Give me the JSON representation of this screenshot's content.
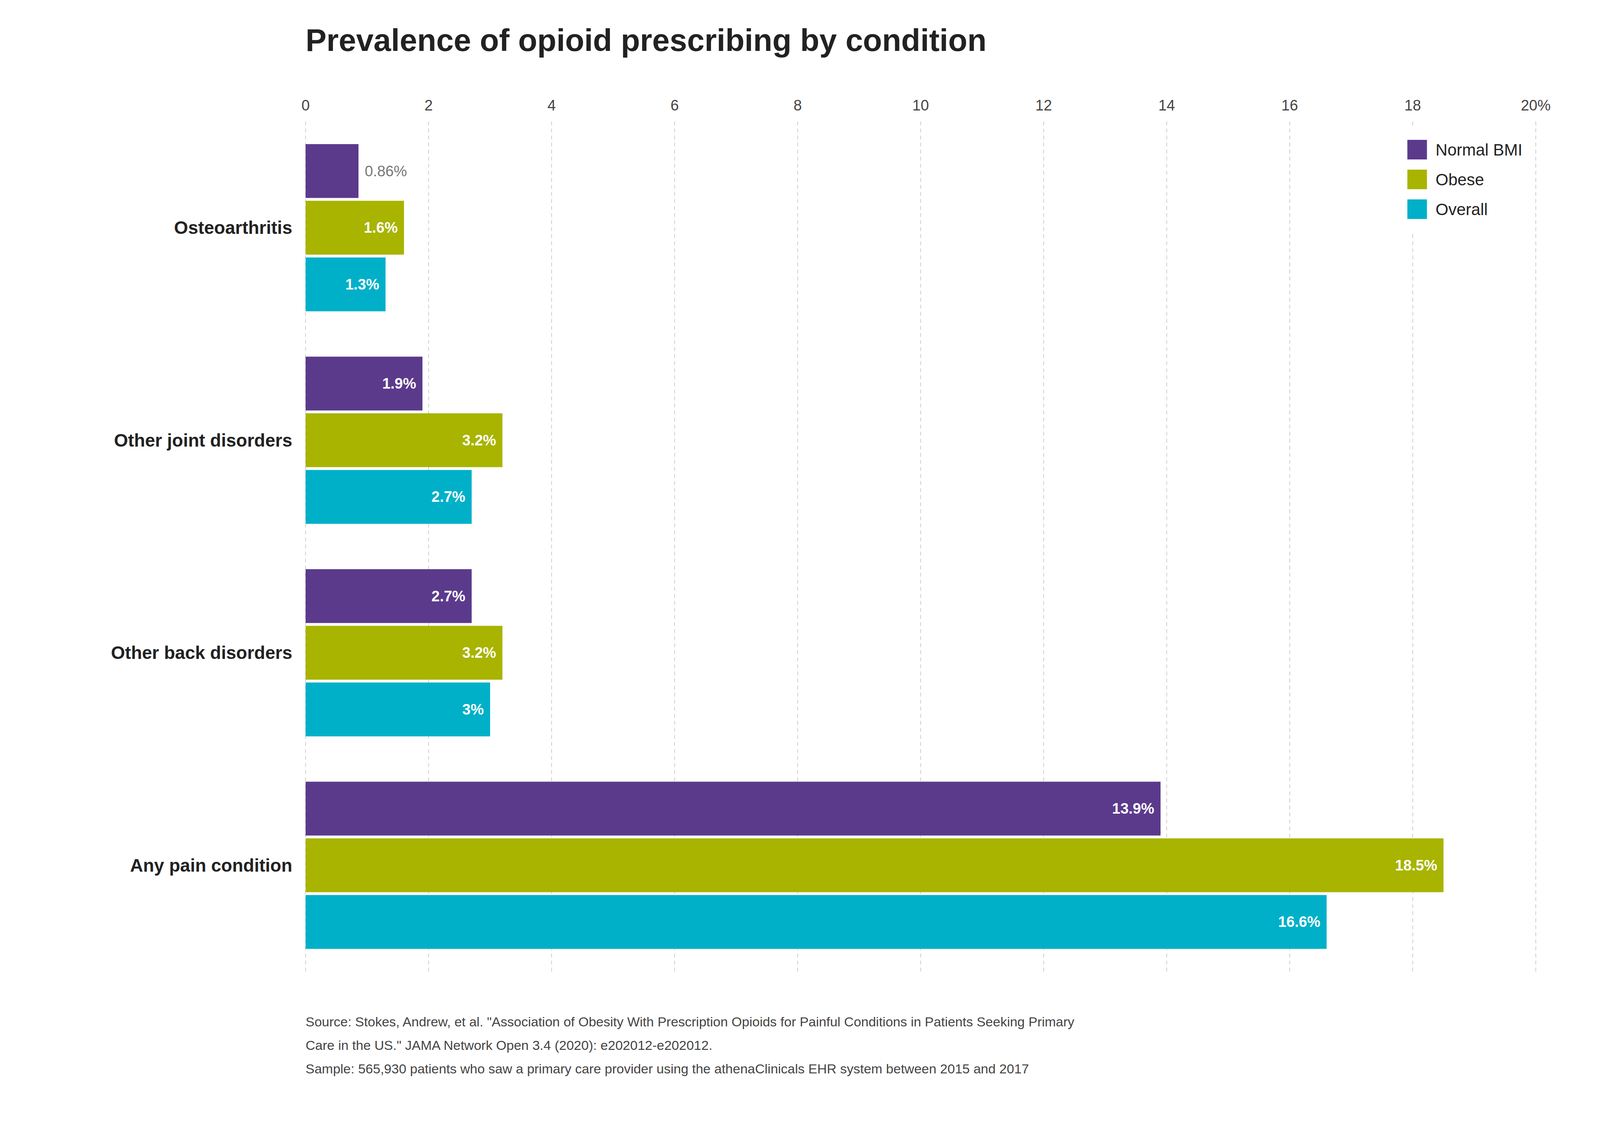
{
  "chart_data": {
    "type": "bar",
    "orientation": "horizontal",
    "title": "Prevalence of opioid prescribing by condition",
    "categories": [
      "Osteoarthritis",
      "Other joint disorders",
      "Other back disorders",
      "Any pain condition"
    ],
    "series": [
      {
        "name": "Normal BMI",
        "color": "#5b3a8c",
        "values": [
          0.86,
          1.9,
          2.7,
          13.9
        ],
        "value_labels": [
          "0.86%",
          "1.9%",
          "2.7%",
          "13.9%"
        ]
      },
      {
        "name": "Obese",
        "color": "#a8b400",
        "values": [
          1.6,
          3.2,
          3.2,
          18.5
        ],
        "value_labels": [
          "1.6%",
          "3.2%",
          "3.2%",
          "18.5%"
        ]
      },
      {
        "name": "Overall",
        "color": "#00b0c8",
        "values": [
          1.3,
          2.7,
          3.0,
          16.6
        ],
        "value_labels": [
          "1.3%",
          "2.7%",
          "3%",
          "16.6%"
        ]
      }
    ],
    "xlim": [
      0,
      20
    ],
    "xticks": [
      0,
      2,
      4,
      6,
      8,
      10,
      12,
      14,
      16,
      18,
      {
        "value": 20,
        "label": "20%"
      }
    ],
    "grid": true,
    "legend": "upper right",
    "data_labels": true,
    "annotations": [
      "Source: Stokes, Andrew, et al. \"Association of Obesity With Prescription Opioids for Painful Conditions in Patients Seeking Primary",
      "Care in the US.\" JAMA Network Open 3.4 (2020): e202012-e202012.",
      "Sample: 565,930 patients who saw a primary care provider using the athenaClinicals EHR system between 2015 and 2017"
    ]
  }
}
